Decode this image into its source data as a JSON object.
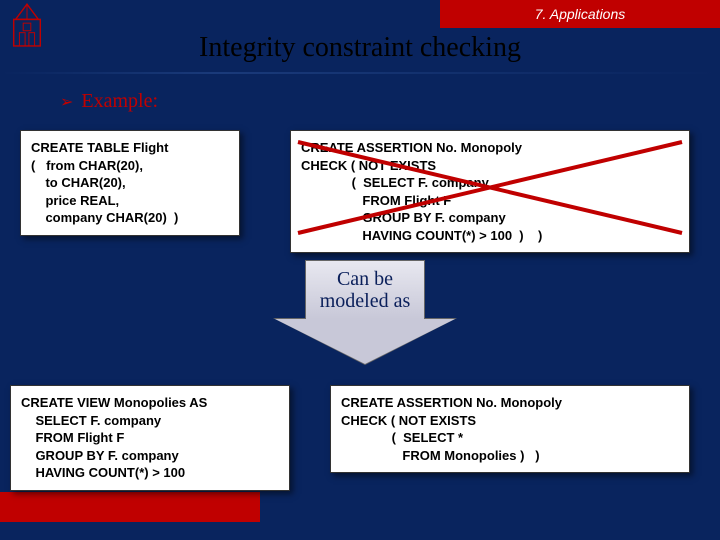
{
  "header": {
    "text": "7. Applications"
  },
  "title": "Integrity constraint checking",
  "example": {
    "bullet": "➢",
    "label": "Example:"
  },
  "boxes": {
    "create_table": "CREATE TABLE Flight\n(   from CHAR(20),\n    to CHAR(20),\n    price REAL,\n    company CHAR(20)  )",
    "assertion1": "CREATE ASSERTION No. Monopoly\nCHECK ( NOT EXISTS\n              (  SELECT F. company\n                 FROM Flight F\n                 GROUP BY F. company\n                 HAVING COUNT(*) > 100  )    )",
    "create_view": "CREATE VIEW Monopolies AS\n    SELECT F. company\n    FROM Flight F\n    GROUP BY F. company\n    HAVING COUNT(*) > 100",
    "assertion2": "CREATE ASSERTION No. Monopoly\nCHECK ( NOT EXISTS\n              (  SELECT *\n                 FROM Monopolies )   )"
  },
  "arrow": {
    "label": "Can be\nmodeled as"
  },
  "colors": {
    "background": "#09245e",
    "header_bg": "#c00000",
    "accent": "#c00000",
    "box_bg": "#ffffff",
    "strike": "#c00000"
  }
}
